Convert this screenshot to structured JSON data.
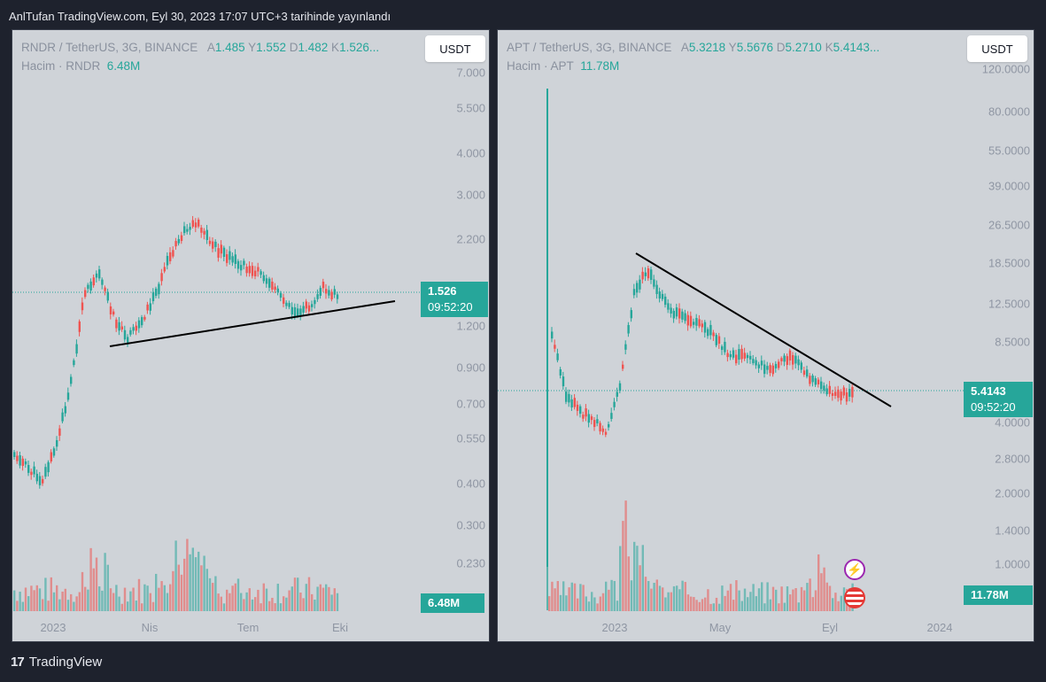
{
  "header": {
    "text": "AnlTufan TradingView.com, Eyl 30, 2023 17:07 UTC+3 tarihinde yayınlandı"
  },
  "footer": {
    "brand": "TradingView",
    "logo": "tradingview-logo-icon"
  },
  "colors": {
    "up": "#26a69a",
    "down": "#ef5350",
    "panel": "#cfd3d8",
    "bg": "#1e222d"
  },
  "left": {
    "symbol": "RNDR / TetherUS, 3G, BINANCE",
    "o_key": "A",
    "o_val": "1.485",
    "h_key": "Y",
    "h_val": "1.552",
    "l_key": "D",
    "l_val": "1.482",
    "c_key": "K",
    "c_val": "1.526...",
    "vol_label": "Hacim · RNDR",
    "vol_val": "6.48M",
    "currency": "USDT",
    "price_badge": "1.526",
    "timer": "09:52:20",
    "vol_badge": "6.48M",
    "y_ticks": [
      "7.000",
      "5.500",
      "4.000",
      "3.000",
      "2.200",
      "1.200",
      "0.900",
      "0.700",
      "0.550",
      "0.400",
      "0.300",
      "0.230"
    ],
    "x_ticks": [
      "2023",
      "Nis",
      "Tem",
      "Eki"
    ]
  },
  "right": {
    "symbol": "APT / TetherUS, 3G, BINANCE",
    "o_key": "A",
    "o_val": "5.3218",
    "h_key": "Y",
    "h_val": "5.5676",
    "l_key": "D",
    "l_val": "5.2710",
    "c_key": "K",
    "c_val": "5.4143...",
    "vol_label": "Hacim · APT",
    "vol_val": "11.78M",
    "currency": "USDT",
    "price_badge": "5.4143",
    "timer": "09:52:20",
    "vol_badge": "11.78M",
    "y_ticks": [
      "120.0000",
      "80.0000",
      "55.0000",
      "39.0000",
      "26.5000",
      "18.5000",
      "12.5000",
      "8.5000",
      "4.0000",
      "2.8000",
      "2.0000",
      "1.4000",
      "1.0000"
    ],
    "x_ticks": [
      "2023",
      "May",
      "Eyl",
      "2024"
    ],
    "events": [
      "lightning-event-icon",
      "us-flag-event-icon"
    ]
  }
}
